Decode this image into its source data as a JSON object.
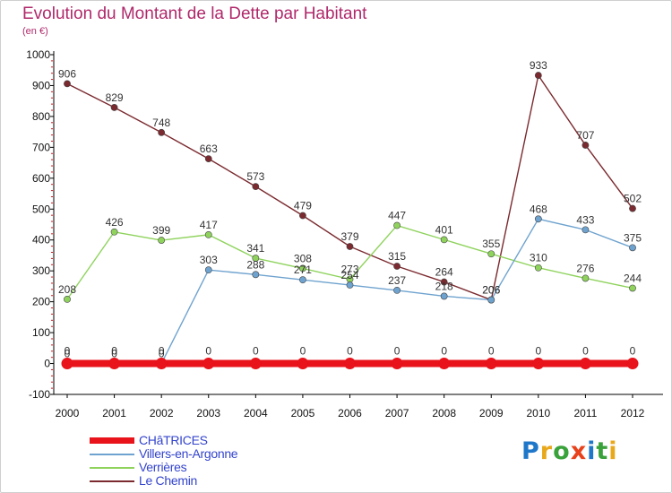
{
  "title": "Evolution du Montant de la Dette par Habitant",
  "subtitle": "(en €)",
  "logo": {
    "letters": [
      "P",
      "r",
      "o",
      "x",
      "i",
      "t",
      "i"
    ],
    "colors": [
      "#1f77c9",
      "#e8a81c",
      "#3aa23a",
      "#e8421c",
      "#1f77c9",
      "#3aa23a",
      "#e8a81c"
    ]
  },
  "chart_data": {
    "type": "line",
    "x": [
      2000,
      2001,
      2002,
      2003,
      2004,
      2005,
      2006,
      2007,
      2008,
      2009,
      2010,
      2011,
      2012
    ],
    "ylim": [
      -100,
      1000
    ],
    "yticks": [
      -100,
      0,
      100,
      200,
      300,
      400,
      500,
      600,
      700,
      800,
      900,
      1000
    ],
    "grid": false,
    "legend_position": "bottom-left",
    "series": [
      {
        "name": "CHâTRICES",
        "color": "#e8131b",
        "values": [
          0,
          0,
          0,
          0,
          0,
          0,
          0,
          0,
          0,
          0,
          0,
          0,
          0
        ]
      },
      {
        "name": "Villers-en-Argonne",
        "color": "#6fa3cf",
        "values": [
          0,
          0,
          0,
          303,
          288,
          271,
          254,
          237,
          218,
          206,
          468,
          433,
          375
        ]
      },
      {
        "name": "Verrières",
        "color": "#8fd35d",
        "values": [
          208,
          426,
          399,
          417,
          341,
          308,
          273,
          447,
          401,
          355,
          310,
          276,
          244
        ]
      },
      {
        "name": "Le Chemin",
        "color": "#7b2a2f",
        "values": [
          906,
          829,
          748,
          663,
          573,
          479,
          379,
          315,
          264,
          206,
          933,
          707,
          502
        ]
      }
    ]
  }
}
